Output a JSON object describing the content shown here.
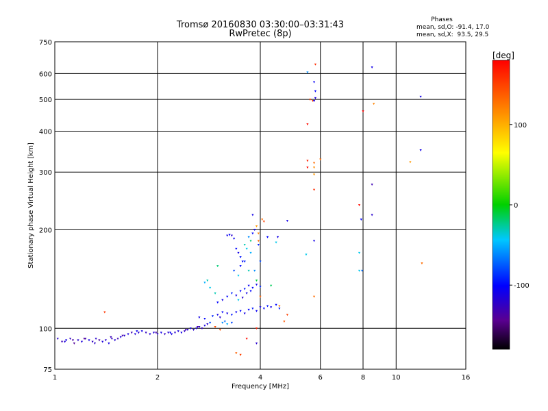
{
  "chart_data": {
    "type": "scatter",
    "title": "Tromsø 20160830 03:30:00–03:31:43",
    "subtitle": "RwPretec (8p)",
    "xlabel": "Frequency [MHz]",
    "ylabel": "Stationary phase Virtual Height [km]",
    "x_scale": "log",
    "y_scale": "log",
    "xlim": [
      1,
      16
    ],
    "ylim": [
      75,
      750
    ],
    "x_ticks": [
      1,
      2,
      4,
      6,
      8,
      10,
      16
    ],
    "x_tick_labels": [
      "1",
      "2",
      "4",
      "6",
      "8",
      "10",
      "16"
    ],
    "y_ticks": [
      75,
      100,
      200,
      300,
      400,
      500,
      600,
      750
    ],
    "y_tick_labels": [
      "75",
      "100",
      "200",
      "300",
      "400",
      "500",
      "600",
      "750"
    ],
    "grid": true,
    "stats": {
      "heading": "Phases",
      "line_o": "mean, sd,O: -91.4, 17.0",
      "line_x": "mean, sd,X:  93.5, 29.5"
    },
    "colorbar": {
      "label": "[deg]",
      "min": -180,
      "max": 180,
      "ticks": [
        100,
        0,
        -100
      ],
      "tick_labels": [
        "100",
        "0",
        "-100"
      ]
    },
    "points": [
      [
        1.02,
        93,
        -120
      ],
      [
        1.05,
        91,
        -130
      ],
      [
        1.08,
        92,
        -110
      ],
      [
        1.11,
        93,
        -125
      ],
      [
        1.14,
        90,
        -140
      ],
      [
        1.17,
        92,
        -120
      ],
      [
        1.2,
        91,
        -115
      ],
      [
        1.23,
        93,
        -130
      ],
      [
        1.26,
        92,
        -110
      ],
      [
        1.29,
        91,
        -125
      ],
      [
        1.32,
        93,
        -120
      ],
      [
        1.35,
        92,
        -135
      ],
      [
        1.38,
        91,
        -115
      ],
      [
        1.41,
        92,
        -120
      ],
      [
        1.44,
        90,
        -110
      ],
      [
        1.47,
        93,
        -125
      ],
      [
        1.5,
        92,
        -118
      ],
      [
        1.53,
        93,
        -130
      ],
      [
        1.56,
        94,
        -115
      ],
      [
        1.6,
        95,
        -120
      ],
      [
        1.64,
        96,
        -112
      ],
      [
        1.68,
        97,
        -128
      ],
      [
        1.72,
        96,
        -115
      ],
      [
        1.76,
        97,
        -120
      ],
      [
        1.8,
        98,
        -110
      ],
      [
        1.85,
        97,
        -125
      ],
      [
        1.9,
        96,
        -118
      ],
      [
        1.95,
        97,
        -115
      ],
      [
        2.0,
        96,
        -120
      ],
      [
        2.05,
        97,
        -110
      ],
      [
        2.1,
        96,
        -125
      ],
      [
        2.15,
        97,
        -118
      ],
      [
        2.2,
        96,
        -112
      ],
      [
        2.25,
        97,
        -120
      ],
      [
        2.3,
        98,
        -115
      ],
      [
        2.35,
        97,
        -110
      ],
      [
        2.4,
        98,
        -125
      ],
      [
        2.45,
        99,
        -118
      ],
      [
        2.5,
        100,
        -112
      ],
      [
        2.55,
        99,
        -120
      ],
      [
        2.6,
        100,
        -110
      ],
      [
        2.65,
        101,
        -118
      ],
      [
        2.7,
        100,
        -125
      ],
      [
        2.75,
        102,
        -112
      ],
      [
        2.8,
        103,
        -120
      ],
      [
        1.07,
        91,
        -115
      ],
      [
        1.13,
        92,
        -135
      ],
      [
        1.22,
        93,
        -140
      ],
      [
        1.31,
        90,
        -122
      ],
      [
        1.46,
        94,
        -128
      ],
      [
        1.58,
        95,
        -133
      ],
      [
        1.74,
        98,
        -105
      ],
      [
        1.98,
        97,
        -135
      ],
      [
        2.18,
        97,
        -104
      ],
      [
        2.42,
        99,
        -132
      ],
      [
        2.62,
        101,
        -138
      ],
      [
        1.4,
        112,
        155
      ],
      [
        2.65,
        108,
        -110
      ],
      [
        2.75,
        107,
        -100
      ],
      [
        2.9,
        109,
        -90
      ],
      [
        3.0,
        110,
        -110
      ],
      [
        3.05,
        108,
        -120
      ],
      [
        3.1,
        112,
        -100
      ],
      [
        3.2,
        111,
        -110
      ],
      [
        3.3,
        110,
        -95
      ],
      [
        3.4,
        112,
        -105
      ],
      [
        3.5,
        113,
        -100
      ],
      [
        3.6,
        111,
        -110
      ],
      [
        3.7,
        114,
        -100
      ],
      [
        3.8,
        115,
        -95
      ],
      [
        3.9,
        113,
        -105
      ],
      [
        4.0,
        116,
        -110
      ],
      [
        4.1,
        115,
        -100
      ],
      [
        4.2,
        117,
        -95
      ],
      [
        4.3,
        116,
        -110
      ],
      [
        4.45,
        118,
        -100
      ],
      [
        4.55,
        115,
        -92
      ],
      [
        2.95,
        101,
        145
      ],
      [
        3.05,
        99,
        140
      ],
      [
        3.1,
        104,
        -60
      ],
      [
        3.2,
        103,
        -50
      ],
      [
        3.3,
        104,
        -80
      ],
      [
        2.85,
        104,
        -80
      ],
      [
        3.15,
        105,
        -70
      ],
      [
        3.0,
        120,
        -100
      ],
      [
        3.1,
        122,
        -110
      ],
      [
        3.2,
        125,
        -100
      ],
      [
        3.3,
        128,
        -90
      ],
      [
        3.4,
        126,
        -110
      ],
      [
        3.5,
        130,
        -100
      ],
      [
        3.6,
        132,
        -95
      ],
      [
        3.7,
        135,
        -105
      ],
      [
        3.8,
        133,
        -100
      ],
      [
        3.9,
        136,
        -110
      ],
      [
        4.0,
        134,
        -90
      ],
      [
        3.45,
        122,
        -40
      ],
      [
        3.55,
        124,
        -120
      ],
      [
        3.65,
        128,
        -110
      ],
      [
        3.75,
        130,
        -100
      ],
      [
        2.75,
        138,
        -50
      ],
      [
        2.85,
        133,
        -40
      ],
      [
        2.95,
        128,
        -30
      ],
      [
        3.2,
        192,
        -110
      ],
      [
        3.25,
        193,
        -100
      ],
      [
        3.3,
        192,
        -120
      ],
      [
        3.35,
        188,
        -105
      ],
      [
        3.4,
        175,
        -100
      ],
      [
        3.45,
        170,
        -110
      ],
      [
        3.5,
        165,
        -95
      ],
      [
        3.55,
        160,
        -100
      ],
      [
        3.6,
        180,
        -30
      ],
      [
        3.65,
        175,
        -40
      ],
      [
        3.7,
        190,
        -60
      ],
      [
        3.75,
        185,
        -20
      ],
      [
        3.8,
        195,
        -100
      ],
      [
        3.85,
        200,
        -110
      ],
      [
        3.9,
        205,
        110
      ],
      [
        3.95,
        195,
        120
      ],
      [
        3.8,
        222,
        -110
      ],
      [
        4.05,
        215,
        130
      ],
      [
        4.1,
        212,
        150
      ],
      [
        3.95,
        180,
        -90
      ],
      [
        3.95,
        185,
        130
      ],
      [
        3.35,
        150,
        -80
      ],
      [
        3.45,
        145,
        -40
      ],
      [
        3.5,
        155,
        -100
      ],
      [
        3.6,
        160,
        -90
      ],
      [
        3.7,
        150,
        -30
      ],
      [
        3.75,
        170,
        -50
      ],
      [
        3.85,
        150,
        -60
      ],
      [
        4.0,
        160,
        -80
      ],
      [
        4.2,
        190,
        -100
      ],
      [
        4.5,
        190,
        -110
      ],
      [
        4.8,
        213,
        -110
      ],
      [
        4.45,
        183,
        -40
      ],
      [
        3.9,
        100,
        165
      ],
      [
        3.65,
        93,
        175
      ],
      [
        3.9,
        90,
        -120
      ],
      [
        3.4,
        84,
        135
      ],
      [
        3.5,
        83,
        150
      ],
      [
        4.7,
        105,
        140
      ],
      [
        4.8,
        110,
        150
      ],
      [
        4.55,
        117,
        120
      ],
      [
        4.0,
        125,
        135
      ],
      [
        5.5,
        605,
        -60
      ],
      [
        5.6,
        500,
        150
      ],
      [
        5.7,
        495,
        150
      ],
      [
        5.75,
        565,
        -105
      ],
      [
        5.8,
        640,
        160
      ],
      [
        5.75,
        495,
        -110
      ],
      [
        5.8,
        505,
        -115
      ],
      [
        5.8,
        530,
        -100
      ],
      [
        5.5,
        420,
        175
      ],
      [
        5.5,
        325,
        165
      ],
      [
        5.5,
        310,
        175
      ],
      [
        5.75,
        320,
        130
      ],
      [
        5.75,
        310,
        115
      ],
      [
        5.75,
        295,
        110
      ],
      [
        5.75,
        265,
        160
      ],
      [
        6.0,
        328,
        130
      ],
      [
        5.75,
        185,
        -110
      ],
      [
        5.45,
        168,
        -40
      ],
      [
        5.75,
        125,
        130
      ],
      [
        7.8,
        238,
        175
      ],
      [
        7.8,
        170,
        -40
      ],
      [
        7.8,
        150,
        -40
      ],
      [
        7.9,
        215,
        -100
      ],
      [
        8.0,
        460,
        180
      ],
      [
        7.95,
        150,
        -70
      ],
      [
        8.5,
        627,
        -110
      ],
      [
        8.5,
        275,
        -130
      ],
      [
        8.5,
        222,
        -120
      ],
      [
        8.6,
        485,
        120
      ],
      [
        11.0,
        322,
        110
      ],
      [
        11.8,
        350,
        -110
      ],
      [
        11.8,
        510,
        -110
      ],
      [
        11.9,
        158,
        130
      ],
      [
        3.0,
        155,
        -20
      ],
      [
        2.8,
        140,
        -30
      ],
      [
        3.9,
        140,
        -10
      ],
      [
        4.3,
        135,
        -15
      ]
    ]
  }
}
